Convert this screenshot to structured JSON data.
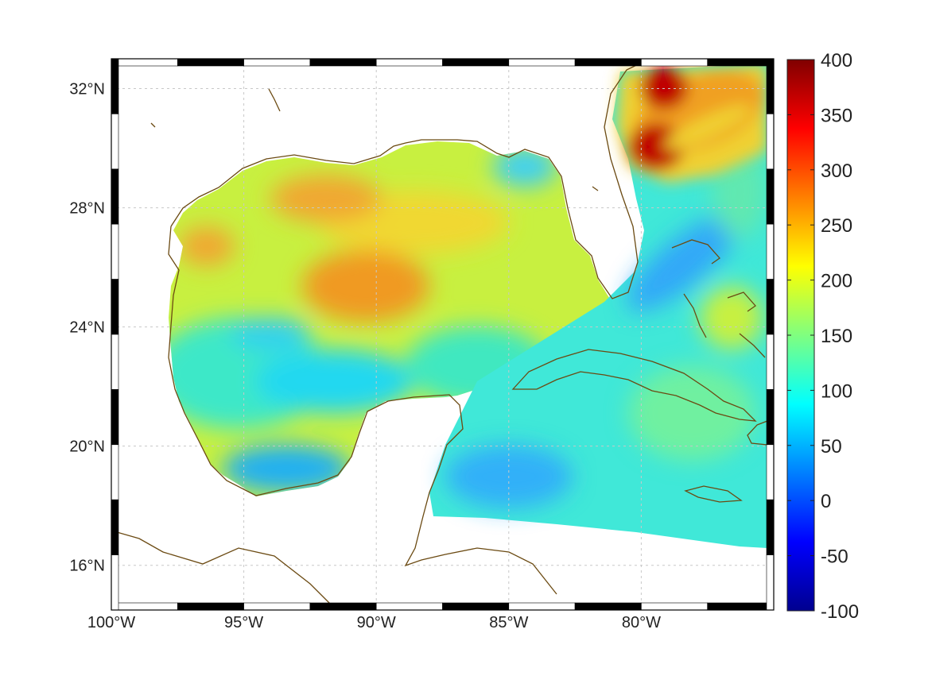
{
  "map": {
    "lon_range": [
      -100,
      -75
    ],
    "lat_range": [
      14.5,
      33
    ],
    "lon_ticks": [
      {
        "value": -100,
        "label": "100°W"
      },
      {
        "value": -95,
        "label": "95°W"
      },
      {
        "value": -90,
        "label": "90°W"
      },
      {
        "value": -85,
        "label": "85°W"
      },
      {
        "value": -80,
        "label": "80°W"
      }
    ],
    "lat_ticks": [
      {
        "value": 32,
        "label": "32°N"
      },
      {
        "value": 28,
        "label": "28°N"
      },
      {
        "value": 24,
        "label": "24°N"
      },
      {
        "value": 20,
        "label": "20°N"
      },
      {
        "value": 16,
        "label": "16°N"
      }
    ],
    "grid": true,
    "frame": "black-and-white checkered border",
    "colors": {
      "coastline": "#6b4a12",
      "land": "#ffffff",
      "grid": "#c8c8c8"
    }
  },
  "colorbar": {
    "colormap": "jet",
    "range": [
      -100,
      400
    ],
    "ticks": [
      "400",
      "350",
      "300",
      "250",
      "200",
      "150",
      "100",
      "50",
      "0",
      "-50",
      "-100"
    ]
  }
}
